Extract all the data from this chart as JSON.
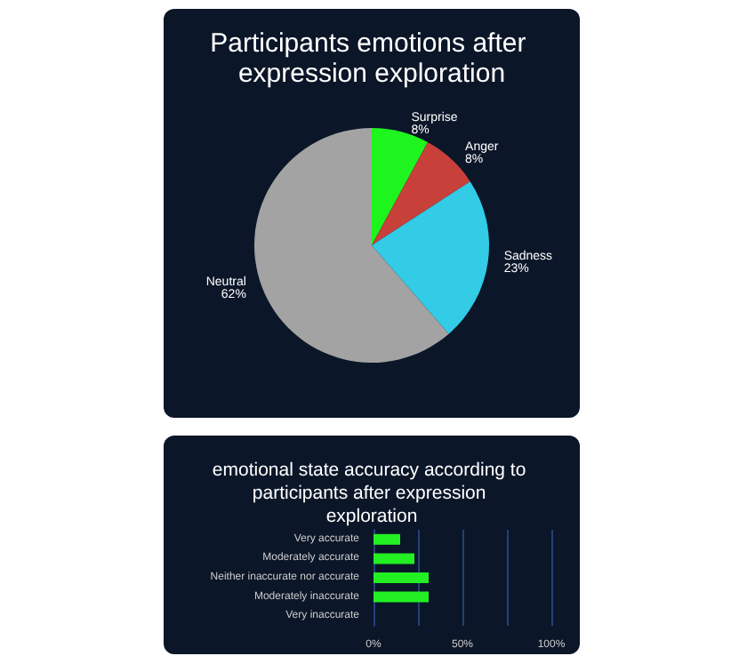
{
  "chart_data": [
    {
      "type": "pie",
      "title": "Participants emotions after expression exploration",
      "categories": [
        "Surprise",
        "Anger",
        "Sadness",
        "Neutral"
      ],
      "values": [
        8,
        8,
        23,
        62
      ],
      "colors": [
        "#1ef51e",
        "#c8403a",
        "#33cbe6",
        "#a3a3a3"
      ],
      "value_labels": [
        "8%",
        "8%",
        "23%",
        "62%"
      ]
    },
    {
      "type": "bar",
      "orientation": "horizontal",
      "title": "emotional state accuracy according to participants after expression exploration",
      "categories": [
        "Very accurate",
        "Moderately accurate",
        "Neither inaccurate nor accurate",
        "Moderately inaccurate",
        "Very inaccurate"
      ],
      "values": [
        15,
        23,
        31,
        31,
        0
      ],
      "color": "#22f022",
      "xlim": [
        0,
        100
      ],
      "xticks": [
        {
          "value": 0,
          "label": "0%"
        },
        {
          "value": 25,
          "label": null
        },
        {
          "value": 50,
          "label": "50%"
        },
        {
          "value": 75,
          "label": null
        },
        {
          "value": 100,
          "label": "100%"
        }
      ],
      "grid": "x"
    }
  ]
}
